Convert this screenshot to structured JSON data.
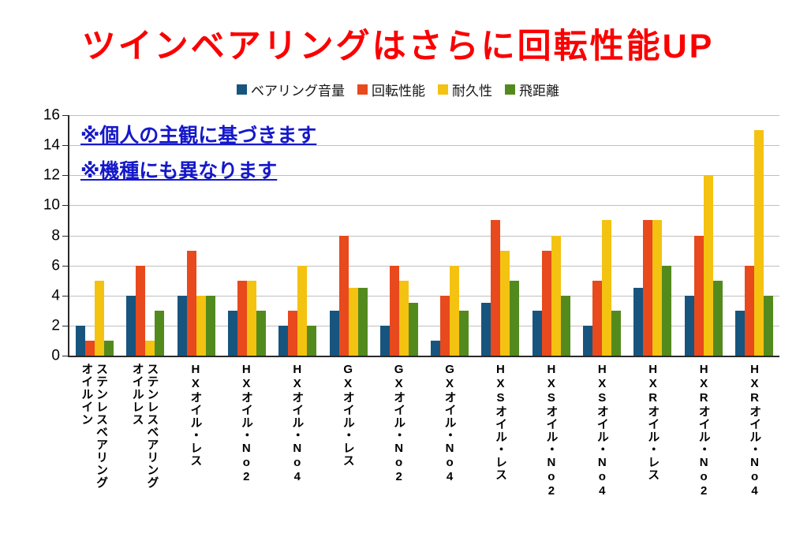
{
  "title": "ツインベアリングはさらに回転性能UP",
  "annotations": [
    "※個人の主観に基づきます",
    "※機種にも異なります"
  ],
  "chart_data": {
    "type": "bar",
    "title": "ツインベアリングはさらに回転性能UP",
    "categories": [
      "オイルイン\nステンレスベアリング",
      "オイルレス\nステンレスベアリング",
      "HXオイル・レス",
      "HXオイル・No2",
      "HXオイル・No4",
      "GXオイル・レス",
      "GXオイル・No2",
      "GXオイル・No4",
      "HXSオイル・レス",
      "HXSオイル・No2",
      "HXSオイル・No4",
      "HXRオイル・レス",
      "HXRオイル・No2",
      "HXRオイル・No4"
    ],
    "series": [
      {
        "name": "ベアリング音量",
        "color": "#17557f",
        "values": [
          2,
          4,
          4,
          3,
          2,
          3,
          2,
          1,
          3.5,
          3,
          2,
          4.5,
          4,
          3
        ]
      },
      {
        "name": "回転性能",
        "color": "#e8491d",
        "values": [
          1,
          6,
          7,
          5,
          3,
          8,
          6,
          4,
          9,
          7,
          5,
          9,
          8,
          6
        ]
      },
      {
        "name": "耐久性",
        "color": "#f4c211",
        "values": [
          5,
          1,
          4,
          5,
          6,
          4.5,
          5,
          6,
          7,
          8,
          9,
          9,
          12,
          15
        ]
      },
      {
        "name": "飛距離",
        "color": "#538a1e",
        "values": [
          1,
          3,
          4,
          3,
          2,
          4.5,
          3.5,
          3,
          5,
          4,
          3,
          6,
          5,
          4
        ]
      }
    ],
    "xlabel": "",
    "ylabel": "",
    "ylim": [
      0,
      16
    ],
    "ytick_step": 2,
    "yticks": [
      0,
      2,
      4,
      6,
      8,
      10,
      12,
      14,
      16
    ],
    "grid": true,
    "legend_position": "top"
  }
}
